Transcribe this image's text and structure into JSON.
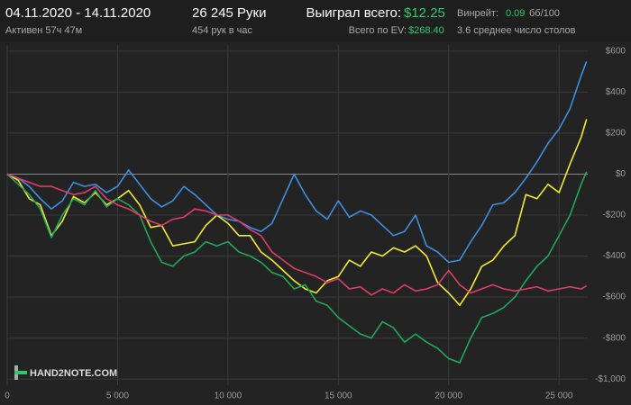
{
  "header": {
    "date_range": "04.11.2020 - 14.11.2020",
    "active": "Активен 57ч 47м",
    "hands": "26 245 Руки",
    "hands_per_hour": "454 рук в час",
    "won_label": "Выиграл всего:",
    "won_value": "$12.25",
    "winrate_label": "Винрейт:",
    "winrate_value": "0.09",
    "winrate_unit": "бб/100",
    "ev_label": "Всего по EV:",
    "ev_value": "$268.40",
    "tables": "3.6 среднее число столов",
    "logo": "HAND2NOTE.COM"
  },
  "chart_data": {
    "type": "line",
    "x": [
      0,
      500,
      1000,
      1500,
      2000,
      2500,
      3000,
      3500,
      4000,
      4500,
      5000,
      5500,
      6000,
      6500,
      7000,
      7500,
      8000,
      8500,
      9000,
      9500,
      10000,
      10500,
      11000,
      11500,
      12000,
      12500,
      13000,
      13500,
      14000,
      14500,
      15000,
      15500,
      16000,
      16500,
      17000,
      17500,
      18000,
      18500,
      19000,
      19500,
      20000,
      20500,
      21000,
      21500,
      22000,
      22500,
      23000,
      23500,
      24000,
      24500,
      25000,
      25500,
      26000,
      26245
    ],
    "series": [
      {
        "color": "#3d8fe0",
        "values": [
          0,
          -20,
          -60,
          -120,
          -170,
          -130,
          -40,
          -60,
          -50,
          -90,
          -60,
          20,
          -50,
          -120,
          -160,
          -130,
          -60,
          -100,
          -150,
          -200,
          -220,
          -230,
          -260,
          -280,
          -240,
          -120,
          0,
          -100,
          -180,
          -220,
          -130,
          -210,
          -180,
          -200,
          -250,
          -300,
          -280,
          -200,
          -350,
          -380,
          -430,
          -420,
          -330,
          -250,
          -150,
          -140,
          -90,
          -20,
          60,
          150,
          220,
          320,
          480,
          550
        ]
      },
      {
        "color": "#f2ea2e",
        "values": [
          0,
          -30,
          -120,
          -150,
          -300,
          -230,
          -110,
          -140,
          -90,
          -150,
          -120,
          -80,
          -150,
          -260,
          -250,
          -350,
          -340,
          -330,
          -250,
          -200,
          -240,
          -300,
          -300,
          -380,
          -420,
          -470,
          -520,
          -560,
          -580,
          -520,
          -500,
          -420,
          -450,
          -380,
          -400,
          -360,
          -380,
          -350,
          -400,
          -530,
          -580,
          -640,
          -560,
          -450,
          -420,
          -350,
          -300,
          -100,
          -120,
          -50,
          -90,
          50,
          180,
          268
        ]
      },
      {
        "color": "#1fa85a",
        "values": [
          0,
          -50,
          -100,
          -170,
          -310,
          -200,
          -120,
          -150,
          -80,
          -160,
          -120,
          -150,
          -200,
          -330,
          -430,
          -450,
          -400,
          -380,
          -330,
          -350,
          -330,
          -380,
          -400,
          -430,
          -480,
          -500,
          -560,
          -540,
          -620,
          -640,
          -700,
          -740,
          -780,
          -800,
          -720,
          -750,
          -820,
          -780,
          -820,
          -850,
          -900,
          -920,
          -800,
          -700,
          -680,
          -650,
          -600,
          -520,
          -450,
          -400,
          -300,
          -200,
          -50,
          12
        ]
      },
      {
        "color": "#e03a6b",
        "values": [
          0,
          -20,
          -40,
          -60,
          -60,
          -80,
          -100,
          -90,
          -60,
          -120,
          -150,
          -170,
          -200,
          -230,
          -250,
          -220,
          -210,
          -170,
          -180,
          -200,
          -200,
          -230,
          -270,
          -300,
          -380,
          -420,
          -460,
          -480,
          -500,
          -530,
          -510,
          -560,
          -550,
          -590,
          -560,
          -580,
          -540,
          -570,
          -560,
          -540,
          -470,
          -540,
          -580,
          -560,
          -540,
          -560,
          -570,
          -560,
          -550,
          -570,
          -560,
          -550,
          -560,
          -545
        ]
      }
    ],
    "xlim": [
      0,
      26300
    ],
    "ylim": [
      -1030,
      630
    ],
    "xticks": [
      0,
      {
        "value": 5000,
        "label": "5 000"
      },
      {
        "value": 10000,
        "label": "10 000"
      },
      {
        "value": 15000,
        "label": "15 000"
      },
      {
        "value": 20000,
        "label": "20 000"
      },
      {
        "value": 25000,
        "label": "25 000"
      }
    ],
    "yticks": [
      {
        "value": 600,
        "label": "$600"
      },
      {
        "value": 400,
        "label": "$400"
      },
      {
        "value": 200,
        "label": "$200"
      },
      {
        "value": 0,
        "label": "$0"
      },
      {
        "value": -200,
        "label": "-$200"
      },
      {
        "value": -400,
        "label": "-$400"
      },
      {
        "value": -600,
        "label": "-$600"
      },
      {
        "value": -800,
        "label": "-$800"
      },
      {
        "value": -1000,
        "label": "-$1,000"
      }
    ],
    "grid": true
  }
}
